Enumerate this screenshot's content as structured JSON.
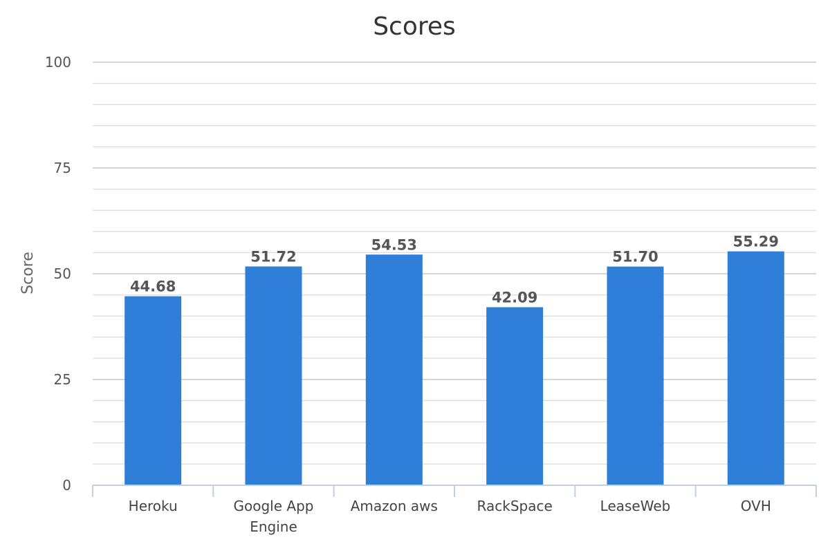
{
  "chart_data": {
    "type": "bar",
    "title": "Scores",
    "xlabel": "",
    "ylabel": "Score",
    "categories": [
      "Heroku",
      "Google App Engine",
      "Amazon aws",
      "RackSpace",
      "LeaseWeb",
      "OVH"
    ],
    "series": [
      {
        "values": [
          44.68,
          51.72,
          54.53,
          42.09,
          51.7,
          55.29
        ],
        "labels": [
          "44.68",
          "51.72",
          "54.53",
          "42.09",
          "51.70",
          "55.29"
        ]
      }
    ],
    "ylim": [
      0,
      100
    ],
    "yticks": [
      0,
      25,
      50,
      75,
      100
    ],
    "minor_step": 5,
    "grid": true,
    "legend": "none",
    "colors": {
      "bar": "#2f7ed8"
    }
  }
}
